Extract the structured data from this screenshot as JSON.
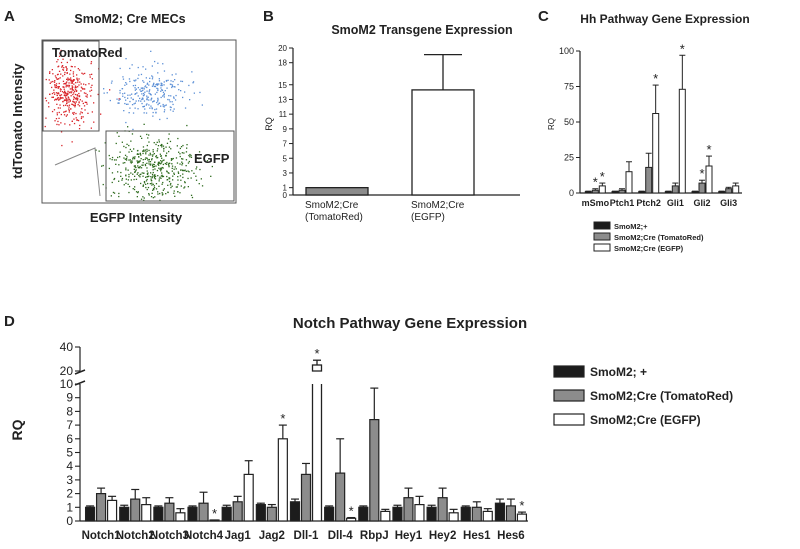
{
  "colors": {
    "black": "#1c1c1c",
    "gray": "#8c8c8c",
    "white": "#ffffff",
    "red": "#d9252a",
    "blue": "#5b8fd6",
    "green": "#2f6b1f"
  },
  "panel_labels": {
    "a": "A",
    "b": "B",
    "c": "C",
    "d": "D"
  },
  "chart_data": [
    {
      "id": "flow",
      "type": "scatter",
      "title": "SmoM2; Cre MECs",
      "xlabel": "EGFP Intensity",
      "ylabel": "tdTomato Intensity",
      "gates": [
        "TomatoRed",
        "EGFP"
      ],
      "populations": [
        {
          "gate": "TomatoRed",
          "color": "red"
        },
        {
          "gate": "",
          "color": "blue"
        },
        {
          "gate": "EGFP",
          "color": "green"
        }
      ]
    },
    {
      "id": "smom2",
      "type": "bar",
      "title": "SmoM2 Transgene Expression",
      "ylabel": "RQ",
      "ylim": [
        0,
        20
      ],
      "yticks": [
        0,
        1,
        3,
        5,
        7,
        9,
        11,
        13,
        15,
        18,
        20
      ],
      "categories": [
        "SmoM2;Cre (TomatoRed)",
        "SmoM2;Cre (EGFP)"
      ],
      "category_lines": [
        [
          "SmoM2;Cre",
          "(TomatoRed)"
        ],
        [
          "SmoM2;Cre",
          "(EGFP)"
        ]
      ],
      "values": [
        1.0,
        14.3
      ],
      "errors": [
        0,
        4.8
      ],
      "fills": [
        "gray",
        "white"
      ]
    },
    {
      "id": "hh",
      "type": "bar",
      "title": "Hh Pathway Gene Expression",
      "ylabel": "RQ",
      "ylim": [
        0,
        100
      ],
      "yticks": [
        0,
        25,
        50,
        75,
        100
      ],
      "categories": [
        "mSmo",
        "Ptch1",
        "Ptch2",
        "Gli1",
        "Gli2",
        "Gli3"
      ],
      "series": [
        {
          "name": "SmoM2;+",
          "color": "black",
          "values": [
            1,
            1,
            1,
            1,
            1,
            1
          ],
          "errors": [
            0.3,
            0.3,
            0.3,
            0.3,
            0.3,
            0.3
          ],
          "stars": [
            false,
            false,
            false,
            false,
            false,
            false
          ]
        },
        {
          "name": "SmoM2;Cre (TomatoRed)",
          "color": "gray",
          "values": [
            2,
            2,
            18,
            5,
            7,
            3
          ],
          "errors": [
            1,
            1,
            10,
            2,
            2,
            1
          ],
          "stars": [
            true,
            false,
            false,
            false,
            true,
            false
          ]
        },
        {
          "name": "SmoM2;Cre (EGFP)",
          "color": "white",
          "values": [
            5,
            15,
            56,
            73,
            19,
            5
          ],
          "errors": [
            2,
            7,
            20,
            24,
            7,
            2
          ],
          "stars": [
            true,
            false,
            true,
            true,
            true,
            false
          ]
        }
      ]
    },
    {
      "id": "notch",
      "type": "bar",
      "title": "Notch Pathway Gene Expression",
      "ylabel": "RQ",
      "y_scale": "broken",
      "ylim_lower": [
        0,
        10
      ],
      "ylim_upper": [
        20,
        40
      ],
      "yticks_lower": [
        0,
        1,
        2,
        3,
        4,
        5,
        6,
        7,
        8,
        9,
        10
      ],
      "yticks_upper": [
        20,
        40
      ],
      "categories": [
        "Notch1",
        "Notch2",
        "Notch3",
        "Notch4",
        "Jag1",
        "Jag2",
        "Dll-1",
        "Dll-4",
        "RbpJ",
        "Hey1",
        "Hey2",
        "Hes1",
        "Hes6"
      ],
      "series": [
        {
          "name": "SmoM2; +",
          "color": "black",
          "values": [
            1,
            1,
            1,
            1,
            1,
            1.2,
            1.4,
            1,
            1,
            1,
            1,
            1,
            1.3
          ],
          "errors": [
            0.1,
            0.15,
            0.1,
            0.1,
            0.15,
            0.1,
            0.2,
            0.1,
            0.1,
            0.15,
            0.15,
            0.1,
            0.3
          ],
          "stars": [
            false,
            false,
            false,
            false,
            false,
            false,
            false,
            false,
            false,
            false,
            false,
            false,
            false
          ]
        },
        {
          "name": "SmoM2;Cre (TomatoRed)",
          "color": "gray",
          "values": [
            2,
            1.6,
            1.3,
            1.3,
            1.4,
            1,
            3.4,
            3.5,
            7.4,
            1.7,
            1.7,
            1,
            1.1
          ],
          "errors": [
            0.4,
            0.7,
            0.4,
            0.8,
            0.4,
            0.2,
            0.8,
            2.5,
            2.3,
            0.7,
            0.7,
            0.4,
            0.5
          ],
          "stars": [
            false,
            false,
            false,
            false,
            false,
            false,
            false,
            false,
            false,
            false,
            false,
            false,
            false
          ]
        },
        {
          "name": "SmoM2;Cre (EGFP)",
          "color": "white",
          "values": [
            1.5,
            1.2,
            0.6,
            0.05,
            3.4,
            6,
            25,
            0.2,
            0.7,
            1.2,
            0.6,
            0.7,
            0.5
          ],
          "errors": [
            0.3,
            0.5,
            0.3,
            0.02,
            1,
            1,
            4,
            0.05,
            0.15,
            0.6,
            0.25,
            0.2,
            0.15
          ],
          "stars": [
            false,
            false,
            false,
            true,
            false,
            true,
            true,
            true,
            false,
            false,
            false,
            false,
            true
          ]
        }
      ]
    }
  ]
}
